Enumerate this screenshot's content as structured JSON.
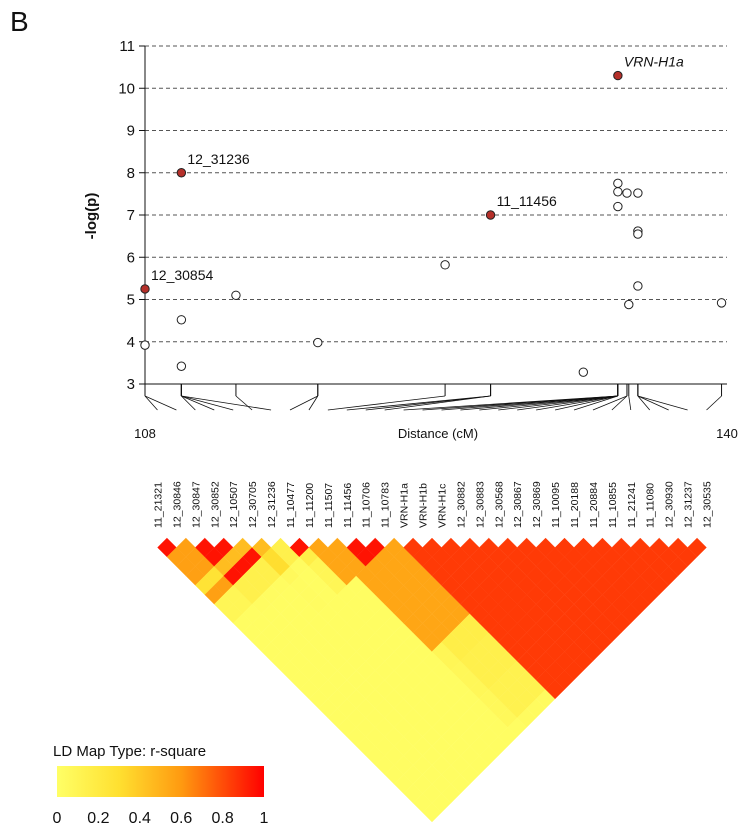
{
  "panel_label": "B",
  "chart_data": [
    {
      "type": "scatter",
      "title": "",
      "ylabel": "-log(p)",
      "xlabel": "Distance (cM)",
      "xlim": [
        108,
        140
      ],
      "ylim": [
        3,
        11
      ],
      "x_tick_labels": [
        "108",
        "140"
      ],
      "y_ticks": [
        3,
        4,
        5,
        6,
        7,
        8,
        9,
        10,
        11
      ],
      "grid": "dashed horizontal lines at each y tick",
      "points": [
        {
          "x": 108.0,
          "y": 5.25,
          "significant": true,
          "label": "12_30854"
        },
        {
          "x": 110.0,
          "y": 8.0,
          "significant": true,
          "label": "12_31236"
        },
        {
          "x": 127.0,
          "y": 7.0,
          "significant": true,
          "label": "11_11456"
        },
        {
          "x": 134.0,
          "y": 10.3,
          "significant": true,
          "label": "VRN-H1a"
        },
        {
          "x": 108.0,
          "y": 3.92,
          "significant": false
        },
        {
          "x": 110.0,
          "y": 4.52,
          "significant": false
        },
        {
          "x": 110.0,
          "y": 3.42,
          "significant": false
        },
        {
          "x": 113.0,
          "y": 5.1,
          "significant": false
        },
        {
          "x": 117.5,
          "y": 3.98,
          "significant": false
        },
        {
          "x": 124.5,
          "y": 5.82,
          "significant": false
        },
        {
          "x": 132.1,
          "y": 3.28,
          "significant": false
        },
        {
          "x": 134.0,
          "y": 7.75,
          "significant": false
        },
        {
          "x": 134.0,
          "y": 7.55,
          "significant": false
        },
        {
          "x": 134.0,
          "y": 7.2,
          "significant": false
        },
        {
          "x": 134.5,
          "y": 7.52,
          "significant": false
        },
        {
          "x": 135.1,
          "y": 7.52,
          "significant": false
        },
        {
          "x": 135.1,
          "y": 6.62,
          "significant": false
        },
        {
          "x": 135.1,
          "y": 6.55,
          "significant": false
        },
        {
          "x": 135.1,
          "y": 5.32,
          "significant": false
        },
        {
          "x": 134.6,
          "y": 4.88,
          "significant": false
        },
        {
          "x": 139.7,
          "y": 4.92,
          "significant": false
        }
      ],
      "colors": {
        "significant": "#b5302a",
        "nonsignificant": "#ffffff"
      }
    },
    {
      "type": "heatmap",
      "title": "",
      "legend_title": "LD Map Type: r-square",
      "legend_ticks": [
        "0",
        "0.2",
        "0.4",
        "0.6",
        "0.8",
        "1"
      ],
      "color_scale": [
        "#ffff66",
        "#ff0000"
      ],
      "markers": [
        "11_21321",
        "12_30846",
        "12_30847",
        "12_30852",
        "12_10507",
        "12_30705",
        "12_31236",
        "11_10477",
        "11_11200",
        "11_11507",
        "11_11456",
        "11_10706",
        "11_10783",
        "VRN-H1a",
        "VRN-H1b",
        "VRN-H1c",
        "12_30882",
        "12_30883",
        "12_30568",
        "12_30867",
        "12_30869",
        "11_10095",
        "11_20188",
        "11_20884",
        "11_10855",
        "11_21241",
        "11_11080",
        "12_30930",
        "12_31237",
        "12_30535"
      ],
      "marker_positions_cM": [
        108.0,
        108.0,
        110.0,
        110.0,
        110.0,
        113.0,
        110.0,
        117.5,
        117.5,
        124.5,
        127.0,
        127.0,
        127.0,
        134.0,
        134.0,
        134.0,
        134.0,
        134.0,
        134.0,
        134.0,
        134.0,
        134.0,
        134.0,
        134.5,
        134.5,
        134.6,
        135.1,
        135.1,
        135.1,
        139.7
      ]
    }
  ]
}
